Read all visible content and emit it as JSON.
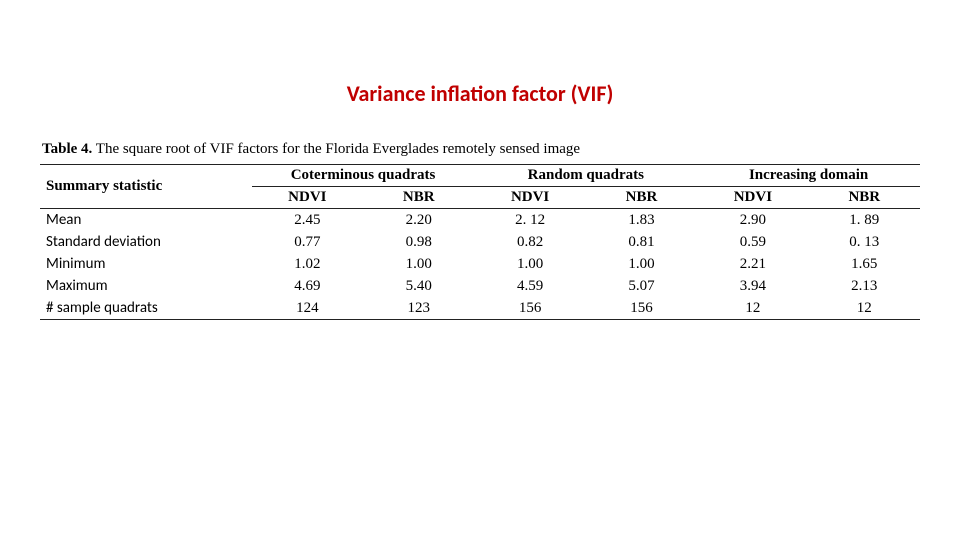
{
  "title": "Variance inflation factor (VIF)",
  "styling": {
    "title_color": "#c00000",
    "title_fontsize": 22,
    "body_fontfamily_serif": "Georgia",
    "body_fontfamily_sans": "Calibri",
    "table_fontsize": 15,
    "rule_color": "#222222",
    "rule_width_outer": 1.2,
    "rule_width_inner": 1.0,
    "page_background": "#ffffff"
  },
  "caption": {
    "label": "Table 4.",
    "text": " The square root of VIF factors for the Florida Everglades remotely sensed image"
  },
  "table": {
    "rowhead_label": "Summary statistic",
    "groups": [
      {
        "title": "Coterminous quadrats",
        "subs": [
          "NDVI",
          "NBR"
        ]
      },
      {
        "title": "Random quadrats",
        "subs": [
          "NDVI",
          "NBR"
        ]
      },
      {
        "title": "Increasing domain",
        "subs": [
          "NDVI",
          "NBR"
        ]
      }
    ],
    "rows": [
      {
        "label": "Mean",
        "vals": [
          "2.45",
          "2.20",
          "2. 12",
          "1.83",
          "2.90",
          "1. 89"
        ]
      },
      {
        "label": "Standard deviation",
        "vals": [
          "0.77",
          "0.98",
          "0.82",
          "0.81",
          "0.59",
          "0. 13"
        ]
      },
      {
        "label": "Minimum",
        "vals": [
          "1.02",
          "1.00",
          "1.00",
          "1.00",
          "2.21",
          "1.65"
        ]
      },
      {
        "label": "Maximum",
        "vals": [
          "4.69",
          "5.40",
          "4.59",
          "5.07",
          "3.94",
          "2.13"
        ]
      },
      {
        "label": "# sample quadrats",
        "vals": [
          "124",
          "123",
          "156",
          "156",
          "12",
          "12"
        ]
      }
    ]
  }
}
